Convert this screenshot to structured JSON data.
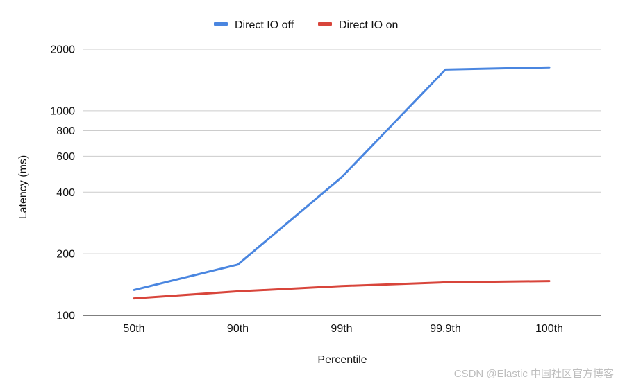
{
  "chart_data": {
    "type": "line",
    "categories": [
      "50th",
      "90th",
      "99th",
      "99.9th",
      "100th"
    ],
    "series": [
      {
        "name": "Direct IO off",
        "color": "#4a86e0",
        "values": [
          133,
          177,
          473,
          1590,
          1630
        ]
      },
      {
        "name": "Direct IO on",
        "color": "#d8453b",
        "values": [
          121,
          131,
          139,
          145,
          147
        ]
      }
    ],
    "xlabel": "Percentile",
    "ylabel": "Latency (ms)",
    "y_scale": "log",
    "ylim": [
      100,
      2000
    ],
    "yticks": [
      100,
      200,
      400,
      600,
      800,
      1000,
      2000
    ],
    "ytick_labels": [
      "100",
      "200",
      "400",
      "600",
      "800",
      "1000",
      "2000"
    ],
    "grid": true,
    "legend_position": "top"
  },
  "watermark": "CSDN @Elastic 中国社区官方博客"
}
